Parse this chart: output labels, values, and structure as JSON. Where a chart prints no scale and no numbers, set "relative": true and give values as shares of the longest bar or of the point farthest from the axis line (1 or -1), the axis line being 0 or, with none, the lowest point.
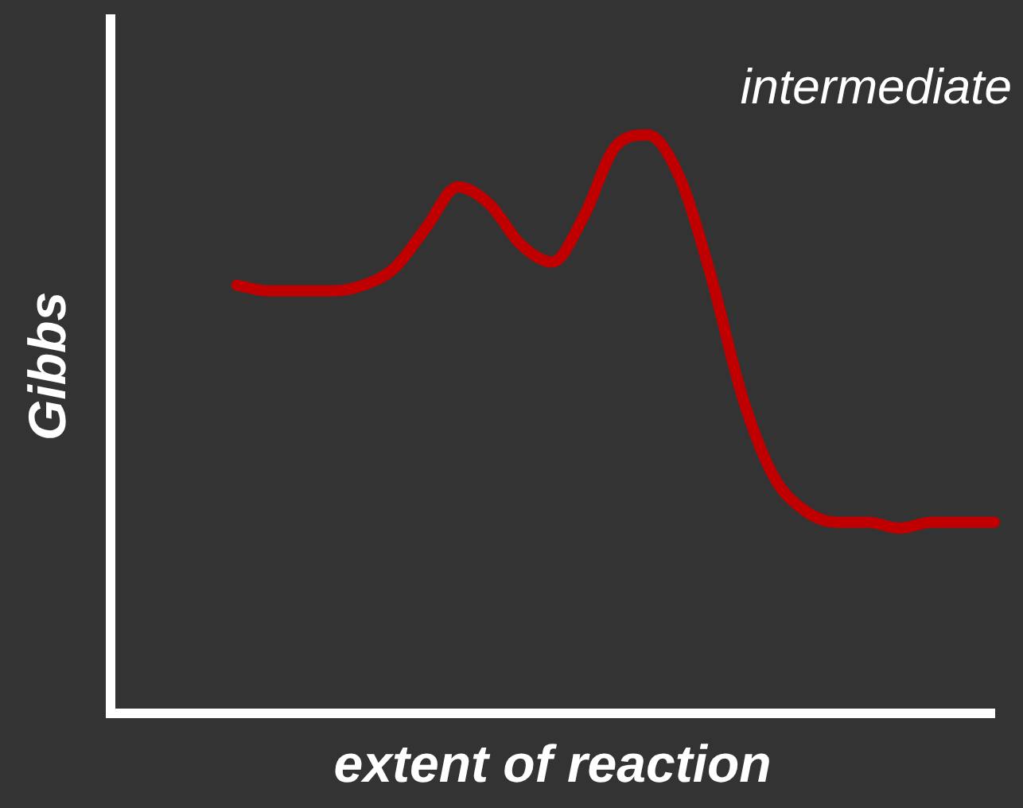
{
  "chart_data": {
    "type": "line",
    "relative": true,
    "xlabel": "extent of reaction",
    "ylabel": "Gibbs",
    "annotations": [
      "intermediate"
    ],
    "grid": false,
    "legend": false,
    "tick_labels": false,
    "marker": "none",
    "line_style": "solid",
    "categories": [
      null,
      null,
      null,
      null,
      null,
      null,
      null,
      null,
      null,
      null,
      null,
      null,
      null,
      null,
      null,
      null,
      null,
      null,
      null,
      null,
      null,
      null,
      null,
      null,
      null,
      null,
      null,
      null,
      null
    ],
    "series": [
      {
        "color": "#c00000",
        "values": [
          null,
          null,
          null,
          null,
          0.74,
          0.73,
          0.73,
          0.73,
          0.74,
          0.77,
          0.84,
          0.91,
          0.88,
          0.81,
          0.78,
          0.86,
          0.98,
          1,
          0.93,
          0.76,
          0.55,
          0.41,
          0.35,
          0.33,
          0.33,
          0.32,
          0.33,
          0.33,
          0.33
        ]
      }
    ]
  }
}
